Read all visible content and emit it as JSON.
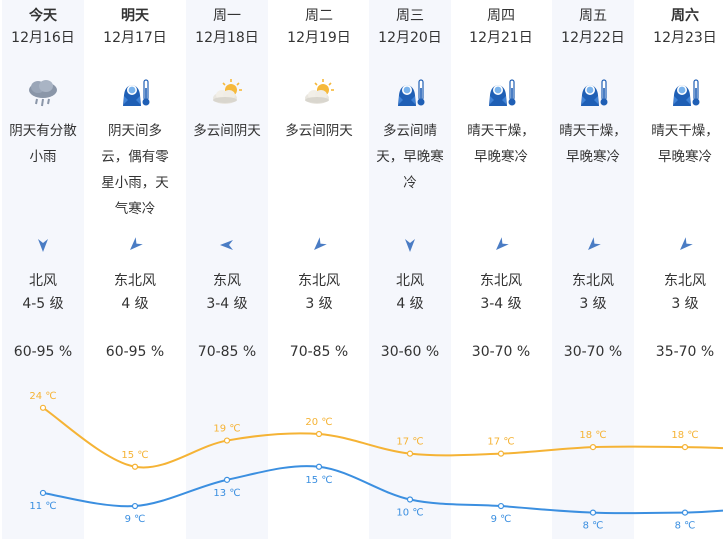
{
  "days": [
    {
      "day": "今天",
      "date": "12月16日",
      "icon": "rain-cloud-icon",
      "desc": [
        "阴天有分散",
        "小雨"
      ],
      "wind_dir": "north",
      "wind_name": "北风",
      "wind_level": "4-5 级",
      "humidity": "60-95 %",
      "high": "24 ℃",
      "low": "11 ℃",
      "high_val": 24,
      "low_val": 11
    },
    {
      "day": "明天",
      "date": "12月17日",
      "icon": "cold-person-icon",
      "desc": [
        "阴天间多",
        "云，偶有零",
        "星小雨，天",
        "气寒冷"
      ],
      "wind_dir": "northeast",
      "wind_name": "东北风",
      "wind_level": "4 级",
      "humidity": "60-95 %",
      "high": "15 ℃",
      "low": "9 ℃",
      "high_val": 15,
      "low_val": 9
    },
    {
      "day": "周一",
      "date": "12月18日",
      "icon": "sun-cloud-icon",
      "desc": [
        "多云间阴天"
      ],
      "wind_dir": "east",
      "wind_name": "东风",
      "wind_level": "3-4 级",
      "humidity": "70-85 %",
      "high": "19 ℃",
      "low": "13 ℃",
      "high_val": 19,
      "low_val": 13
    },
    {
      "day": "周二",
      "date": "12月19日",
      "icon": "sun-cloud-icon",
      "desc": [
        "多云间阴天"
      ],
      "wind_dir": "northeast",
      "wind_name": "东北风",
      "wind_level": "3 级",
      "humidity": "70-85 %",
      "high": "20 ℃",
      "low": "15 ℃",
      "high_val": 20,
      "low_val": 15
    },
    {
      "day": "周三",
      "date": "12月20日",
      "icon": "cold-person-icon",
      "desc": [
        "多云间晴",
        "天，早晚寒",
        "冷"
      ],
      "wind_dir": "north",
      "wind_name": "北风",
      "wind_level": "4 级",
      "humidity": "30-60 %",
      "high": "17 ℃",
      "low": "10 ℃",
      "high_val": 17,
      "low_val": 10
    },
    {
      "day": "周四",
      "date": "12月21日",
      "icon": "cold-person-icon",
      "desc": [
        "晴天干燥，",
        "早晚寒冷"
      ],
      "wind_dir": "northeast",
      "wind_name": "东北风",
      "wind_level": "3-4 级",
      "humidity": "30-70 %",
      "high": "17 ℃",
      "low": "9 ℃",
      "high_val": 17,
      "low_val": 9
    },
    {
      "day": "周五",
      "date": "12月22日",
      "icon": "cold-person-icon",
      "desc": [
        "晴天干燥，",
        "早晚寒冷"
      ],
      "wind_dir": "northeast",
      "wind_name": "东北风",
      "wind_level": "3 级",
      "humidity": "30-70 %",
      "high": "18 ℃",
      "low": "8 ℃",
      "high_val": 18,
      "low_val": 8
    },
    {
      "day": "周六",
      "date": "12月23日",
      "icon": "cold-person-icon",
      "desc": [
        "晴天干燥，",
        "早晚寒冷"
      ],
      "wind_dir": "northeast",
      "wind_name": "东北风",
      "wind_level": "3 级",
      "humidity": "35-70 %",
      "high": "18 ℃",
      "low": "8 ℃",
      "high_val": 18,
      "low_val": 8
    }
  ],
  "colors": {
    "high": "#f5b335",
    "low": "#3b8fe0",
    "icon_blue": "#1f5fb5",
    "shade": "#f5f7fc",
    "arrow": "#4a7cc4"
  }
}
